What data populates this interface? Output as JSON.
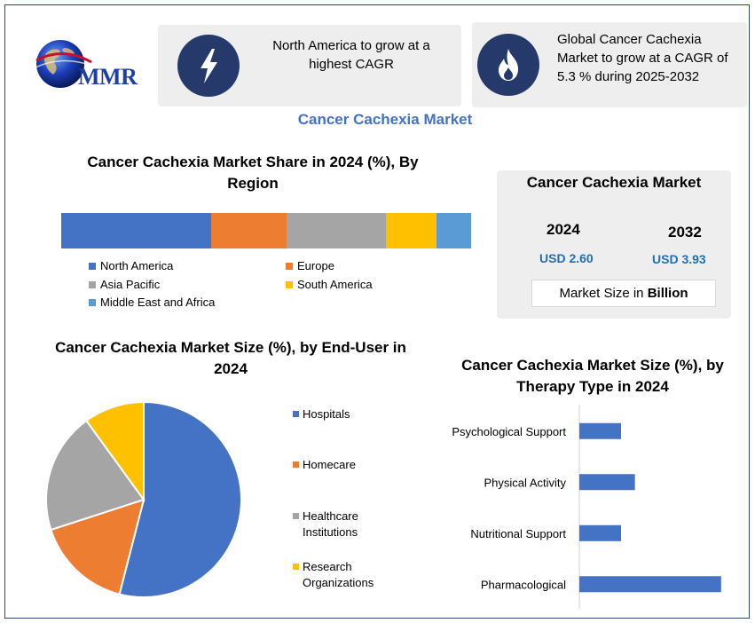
{
  "logo": {
    "text": "MMR"
  },
  "cards": [
    {
      "icon": "lightning-icon",
      "text": "North America to grow at a highest CAGR"
    },
    {
      "icon": "flame-icon",
      "text": "Global Cancer Cachexia Market to grow at a CAGR of 5.3 % during 2025-2032"
    }
  ],
  "main_title": "Cancer Cachexia Market",
  "market_size": {
    "title": "Cancer Cachexia Market",
    "year1": "2024",
    "value1": "USD 2.60",
    "year2": "2032",
    "value2": "USD 3.93",
    "unit_prefix": "Market Size in ",
    "unit_bold": "Billion"
  },
  "colors": {
    "blue": "#4472c4",
    "orange": "#ed7d31",
    "gray": "#a5a5a5",
    "yellow": "#ffc000",
    "lightblue": "#5b9bd5",
    "navy": "#253a6a",
    "accent_text": "#4472c4",
    "usd_text": "#1f6fb8"
  },
  "chart_data": [
    {
      "type": "bar",
      "orientation": "horizontal-stacked",
      "title": "Cancer Cachexia Market Share in 2024 (%), By Region",
      "categories": [
        "North America",
        "Europe",
        "Asia Pacific",
        "South America",
        "Middle East and Africa"
      ],
      "values": [
        36.6,
        18.4,
        24.2,
        12.4,
        8.4
      ],
      "colors": [
        "#4472c4",
        "#ed7d31",
        "#a5a5a5",
        "#ffc000",
        "#5b9bd5"
      ],
      "legend_position": "bottom"
    },
    {
      "type": "pie",
      "title": "Cancer Cachexia Market Size (%), by End-User in 2024",
      "categories": [
        "Hospitals",
        "Homecare",
        "Healthcare Institutions",
        "Research Organizations"
      ],
      "values": [
        54,
        16,
        20,
        10
      ],
      "colors": [
        "#4472c4",
        "#ed7d31",
        "#a5a5a5",
        "#ffc000"
      ],
      "legend_position": "right"
    },
    {
      "type": "bar",
      "orientation": "horizontal",
      "title": "Cancer Cachexia Market Size (%), by Therapy Type in 2024",
      "categories": [
        "Psychological Support",
        "Physical Activity",
        "Nutritional Support",
        "Pharmacological"
      ],
      "values": [
        15,
        20,
        15,
        51
      ],
      "xlim": [
        0,
        60
      ],
      "color": "#4472c4"
    }
  ]
}
